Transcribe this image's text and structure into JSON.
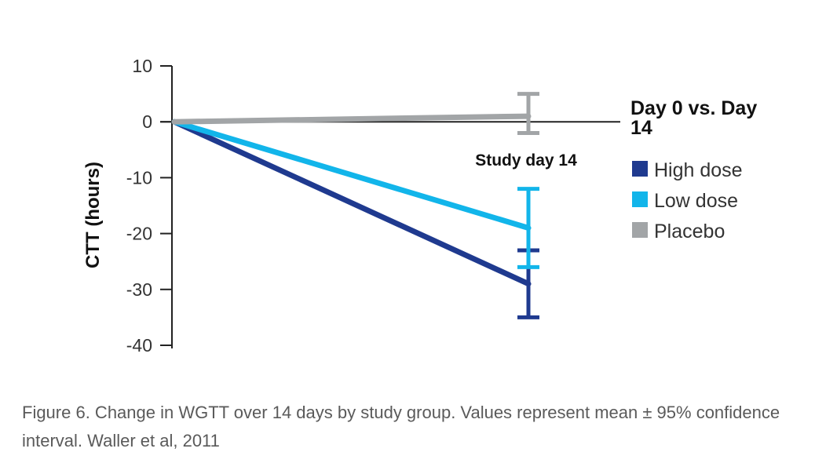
{
  "chart_data": {
    "type": "line",
    "ylabel": "CTT (hours)",
    "ylim": [
      -40,
      10
    ],
    "yticks": [
      10,
      0,
      -10,
      -20,
      -30,
      -40
    ],
    "x": [
      0,
      14
    ],
    "annotation": "Study day 14",
    "legend_title_line1": "Day 0 vs. Day",
    "legend_title_line2": "14",
    "legend_placement": "right",
    "grid": false,
    "series": [
      {
        "name": "High dose",
        "color": "#1f3a8f",
        "values": [
          0,
          -29
        ],
        "ci": [
          -35,
          -23
        ]
      },
      {
        "name": "Low dose",
        "color": "#12b5ea",
        "values": [
          0,
          -19
        ],
        "ci": [
          -26,
          -12
        ]
      },
      {
        "name": "Placebo",
        "color": "#a2a5a7",
        "values": [
          0,
          1
        ],
        "ci": [
          -2,
          5
        ]
      }
    ]
  },
  "caption": "Figure 6. Change in WGTT over 14 days by study group. Values represent mean ± 95% confidence interval. Waller et al, 2011"
}
